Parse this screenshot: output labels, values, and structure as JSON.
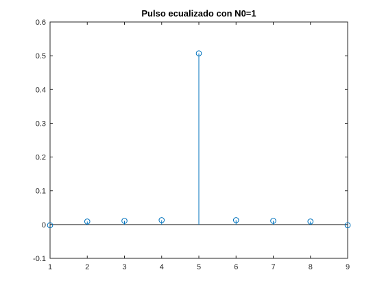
{
  "chart_data": {
    "type": "stem",
    "title": "Pulso ecualizado con N0=1",
    "xlabel": "",
    "ylabel": "",
    "x": [
      1,
      2,
      3,
      4,
      5,
      6,
      7,
      8,
      9
    ],
    "y": [
      -0.002,
      0.009,
      0.011,
      0.013,
      0.507,
      0.013,
      0.011,
      0.009,
      -0.002
    ],
    "xlim": [
      1,
      9
    ],
    "ylim": [
      -0.1,
      0.6
    ],
    "xticks": [
      "1",
      "2",
      "3",
      "4",
      "5",
      "6",
      "7",
      "8",
      "9"
    ],
    "yticks": [
      "-0.1",
      "0",
      "0.1",
      "0.2",
      "0.3",
      "0.4",
      "0.5",
      "0.6"
    ],
    "ytick_values": [
      -0.1,
      0,
      0.1,
      0.2,
      0.3,
      0.4,
      0.5,
      0.6
    ],
    "grid": false,
    "baseline": 0,
    "marker": "circle",
    "series_color": "#0072BD",
    "axis_color": "#262626"
  }
}
